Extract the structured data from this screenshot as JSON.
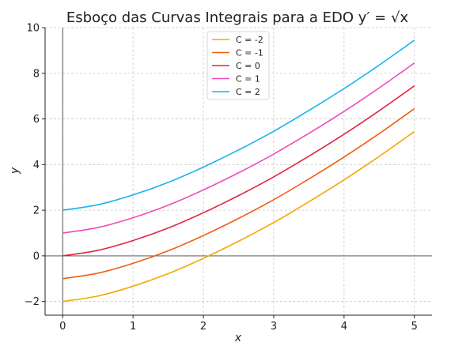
{
  "chart_data": {
    "type": "line",
    "title": "Esboço das Curvas Integrais para a EDO y′ = √x",
    "xlabel": "x",
    "ylabel": "y",
    "xlim": [
      -0.25,
      5.25
    ],
    "ylim": [
      -2.6,
      10
    ],
    "x_ticks": [
      0,
      1,
      2,
      3,
      4,
      5
    ],
    "x_tick_labels": [
      "0",
      "1",
      "2",
      "3",
      "4",
      "5"
    ],
    "y_ticks": [
      -2,
      0,
      2,
      4,
      6,
      8,
      10
    ],
    "y_tick_labels": [
      "−2",
      "0",
      "2",
      "4",
      "6",
      "8",
      "10"
    ],
    "grid": true,
    "legend_position": "top-center",
    "x": [
      0,
      0.5,
      1,
      1.5,
      2,
      2.5,
      3,
      3.5,
      4,
      4.5,
      5
    ],
    "series": [
      {
        "name": "C = -2",
        "color": "#f5a800",
        "values": [
          -2,
          -1.76,
          -1.33,
          -0.78,
          -0.11,
          0.64,
          1.46,
          2.37,
          3.33,
          4.36,
          5.45
        ]
      },
      {
        "name": "C = -1",
        "color": "#ee5e10",
        "values": [
          -1,
          -0.76,
          -0.33,
          0.22,
          0.89,
          1.64,
          2.46,
          3.37,
          4.33,
          5.36,
          6.45
        ]
      },
      {
        "name": "C = 0",
        "color": "#e52440",
        "values": [
          0,
          0.24,
          0.67,
          1.22,
          1.89,
          2.64,
          3.46,
          4.37,
          5.33,
          6.36,
          7.45
        ]
      },
      {
        "name": "C = 1",
        "color": "#ef4cb8",
        "values": [
          1,
          1.24,
          1.67,
          2.22,
          2.89,
          3.64,
          4.46,
          5.37,
          6.33,
          7.36,
          8.45
        ]
      },
      {
        "name": "C = 2",
        "color": "#16b3ee",
        "values": [
          2,
          2.24,
          2.67,
          3.22,
          3.89,
          4.64,
          5.46,
          6.37,
          7.33,
          8.36,
          9.45
        ]
      }
    ]
  }
}
